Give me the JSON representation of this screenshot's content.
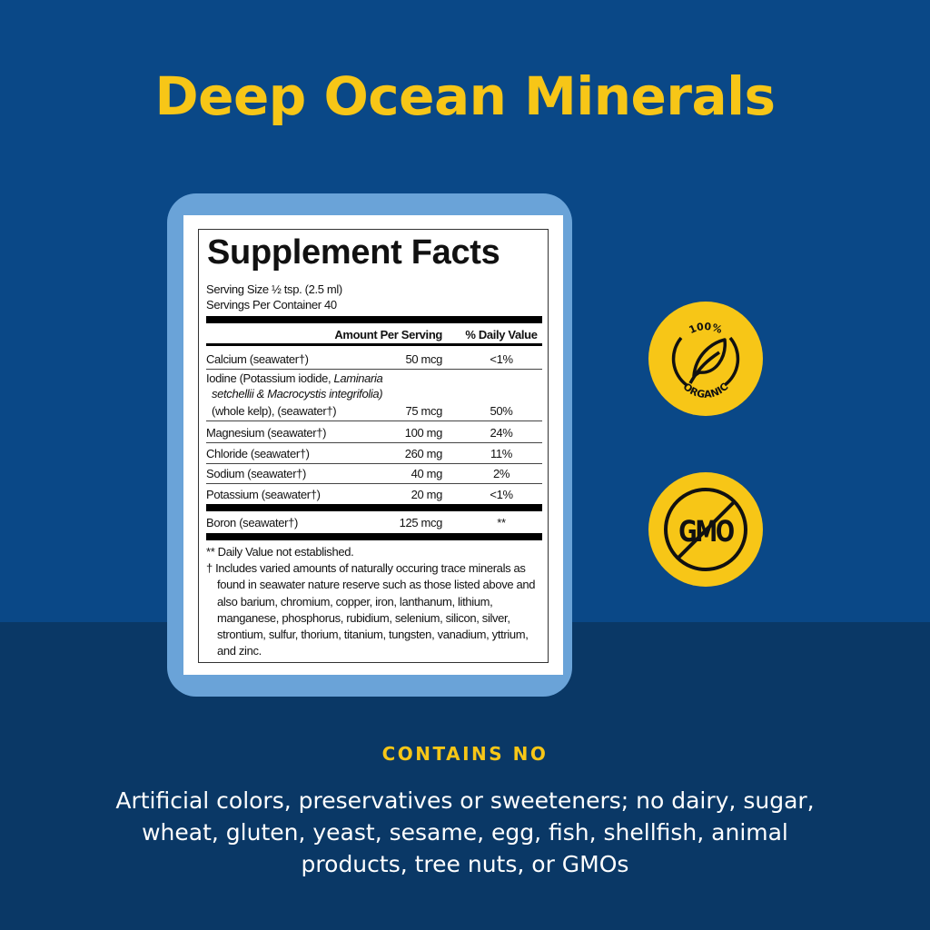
{
  "title": "Deep Ocean Minerals",
  "facts": {
    "heading": "Supplement Facts",
    "serving_size": "Serving Size ½ tsp. (2.5 ml)",
    "servings_per_container": "Servings Per Container 40",
    "col_amount": "Amount Per Serving",
    "col_dv": "% Daily Value",
    "rows": [
      {
        "name": "Calcium (seawater†)",
        "amount": "50 mcg",
        "dv": "<1%"
      },
      {
        "name_line1": "Iodine (Potassium iodide, ",
        "name_italic1": "Laminaria",
        "name_italic2": "setchellii & Macrocystis integrifolia)",
        "name_line3": "(whole kelp), (seawater†)",
        "amount": "75 mcg",
        "dv": "50%"
      },
      {
        "name": "Magnesium (seawater†)",
        "amount": "100 mg",
        "dv": "24%"
      },
      {
        "name": "Chloride (seawater†)",
        "amount": "260 mg",
        "dv": "11%"
      },
      {
        "name": "Sodium (seawater†)",
        "amount": "40 mg",
        "dv": "2%"
      },
      {
        "name": "Potassium (seawater†)",
        "amount": "20 mg",
        "dv": "<1%"
      },
      {
        "name": "Boron (seawater†)",
        "amount": "125 mcg",
        "dv": "**"
      }
    ],
    "footnote_1": "** Daily Value not established.",
    "footnote_2": "† Includes varied amounts of naturally occuring trace minerals as found in seawater nature reserve such as those listed above and also barium, chromium, copper, iron, lanthanum, lithium, manganese, phosphorus, rubidium, selenium, silicon, silver, strontium, sulfur, thorium, titanium, tungsten, vanadium, yttrium, and zinc."
  },
  "badges": [
    {
      "icon": "organic-leaf-icon",
      "top_text": "100%",
      "bottom_text": "ORGANIC"
    },
    {
      "icon": "no-gmo-icon",
      "text": "GMO"
    }
  ],
  "contains_heading": "CONTAINS NO",
  "contains_text": "Artificial colors, preservatives or sweeteners; no dairy, sugar, wheat, gluten, yeast, sesame, egg, fish, shellfish, animal products, tree nuts, or GMOs",
  "colors": {
    "background": "#0a4887",
    "lower_band": "#0a3866",
    "accent_yellow": "#f7c617",
    "card_border": "#6aa3d8"
  }
}
